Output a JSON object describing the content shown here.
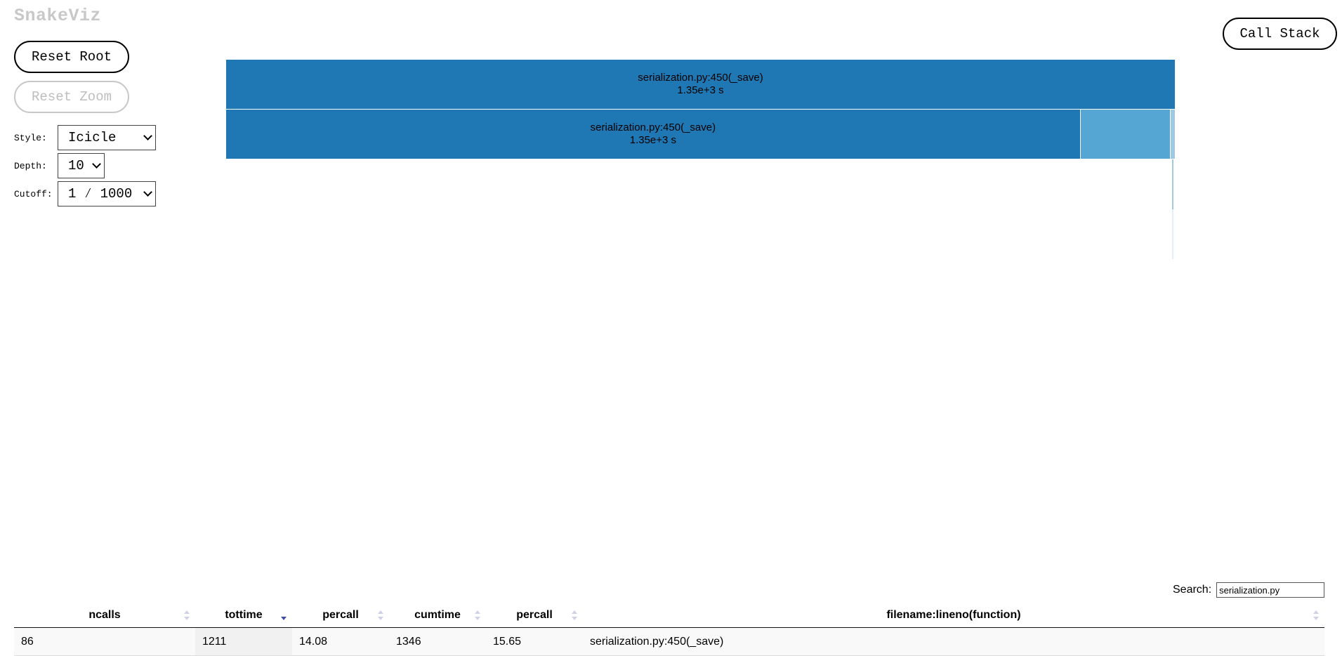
{
  "app": {
    "title": "SnakeViz"
  },
  "buttons": {
    "reset_root": "Reset Root",
    "reset_zoom": "Reset Zoom",
    "call_stack": "Call Stack"
  },
  "controls": {
    "style": {
      "label": "Style:",
      "value": "Icicle"
    },
    "depth": {
      "label": "Depth:",
      "value": "10"
    },
    "cutoff": {
      "label": "Cutoff:",
      "value": "1 ⁄ 1000"
    }
  },
  "colors": {
    "primary_block": "#1f77b4",
    "secondary_block": "#56a6d3",
    "tertiary_block": "#9ecae1",
    "sorted_arrow": "#3d4ea6"
  },
  "icicle": {
    "levels": [
      [
        {
          "label": "serialization.py:450(_save)",
          "time": "1.35e+3 s",
          "fraction": 1.0
        }
      ],
      [
        {
          "label": "serialization.py:450(_save)",
          "time": "1.35e+3 s",
          "fraction": 0.9
        },
        {
          "label": "",
          "time": "",
          "fraction": 0.095
        },
        {
          "label": "",
          "time": "",
          "fraction": 0.005
        }
      ]
    ]
  },
  "search": {
    "label": "Search:",
    "value": "serialization.py"
  },
  "table": {
    "columns": [
      "ncalls",
      "tottime",
      "percall",
      "cumtime",
      "percall",
      "filename:lineno(function)"
    ],
    "sorted_column": 1,
    "rows": [
      {
        "ncalls": "86",
        "tottime": "1211",
        "percall": "14.08",
        "cumtime": "1346",
        "percall2": "15.65",
        "function": "serialization.py:450(_save)"
      }
    ]
  }
}
